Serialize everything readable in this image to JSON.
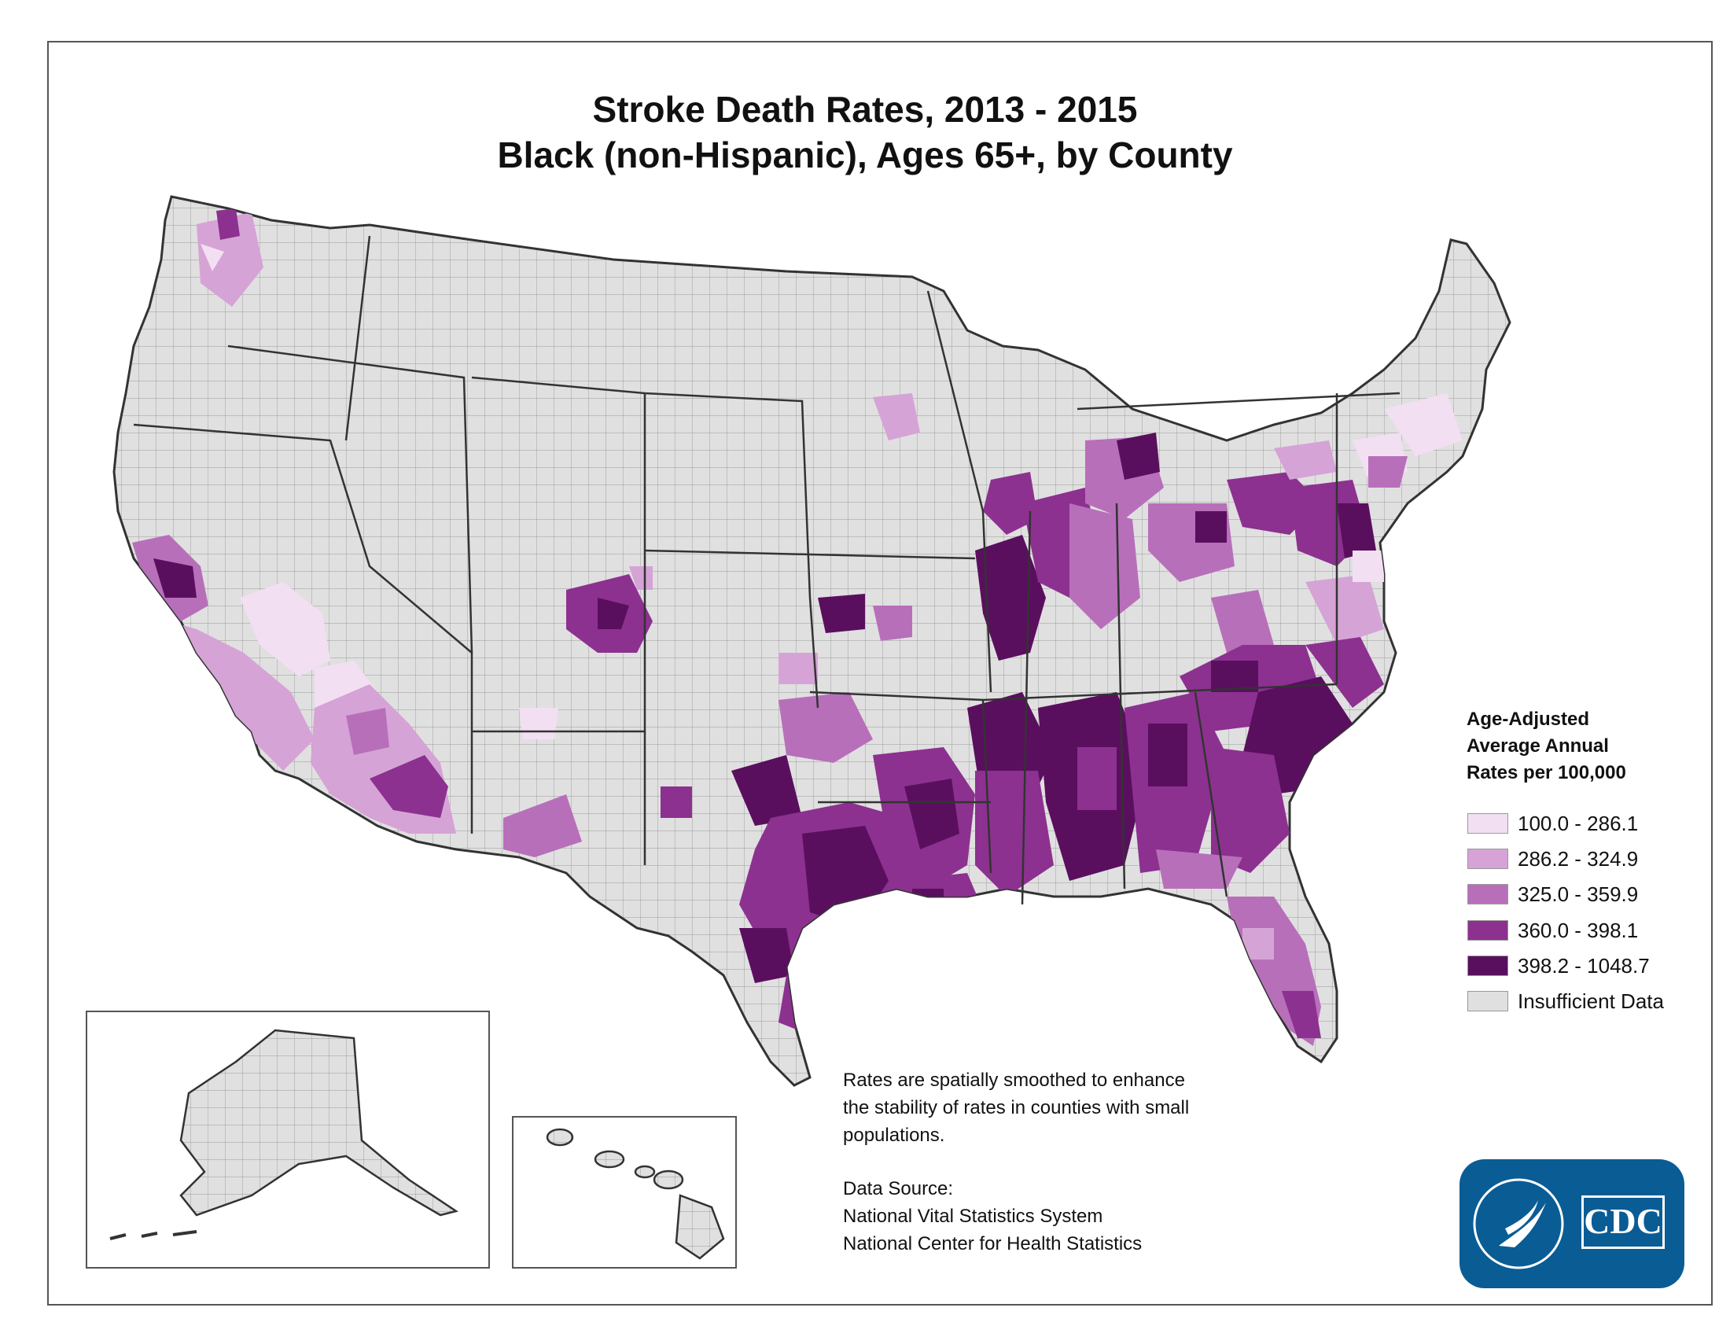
{
  "title": {
    "line1": "Stroke Death Rates, 2013 - 2015",
    "line2": "Black (non-Hispanic), Ages 65+, by County"
  },
  "legend": {
    "heading": [
      "Age-Adjusted",
      "Average Annual",
      "Rates per 100,000"
    ],
    "classes": [
      {
        "label": "100.0 - 286.1",
        "color": "#f2e0f2"
      },
      {
        "label": "286.2 - 324.9",
        "color": "#d6a3d6"
      },
      {
        "label": "325.0 - 359.9",
        "color": "#b86fba"
      },
      {
        "label": "360.0 - 398.1",
        "color": "#8c3190"
      },
      {
        "label": "398.2 - 1048.7",
        "color": "#5a0f5e"
      },
      {
        "label": "Insufficient Data",
        "color": "#e0e0e0"
      }
    ]
  },
  "notes": {
    "smoothing": [
      "Rates are spatially smoothed to enhance",
      "the stability of rates in counties with small",
      "populations."
    ],
    "source_heading": "Data Source:",
    "source_lines": [
      "National Vital Statistics System",
      "National Center for Health Statistics"
    ]
  },
  "logo": {
    "text": "CDC",
    "icon": "hhs-eagle-icon"
  },
  "map": {
    "base_color": "#e0e0e0",
    "border_color": "#333333",
    "insets": [
      "alaska-inset",
      "hawaii-inset"
    ]
  }
}
